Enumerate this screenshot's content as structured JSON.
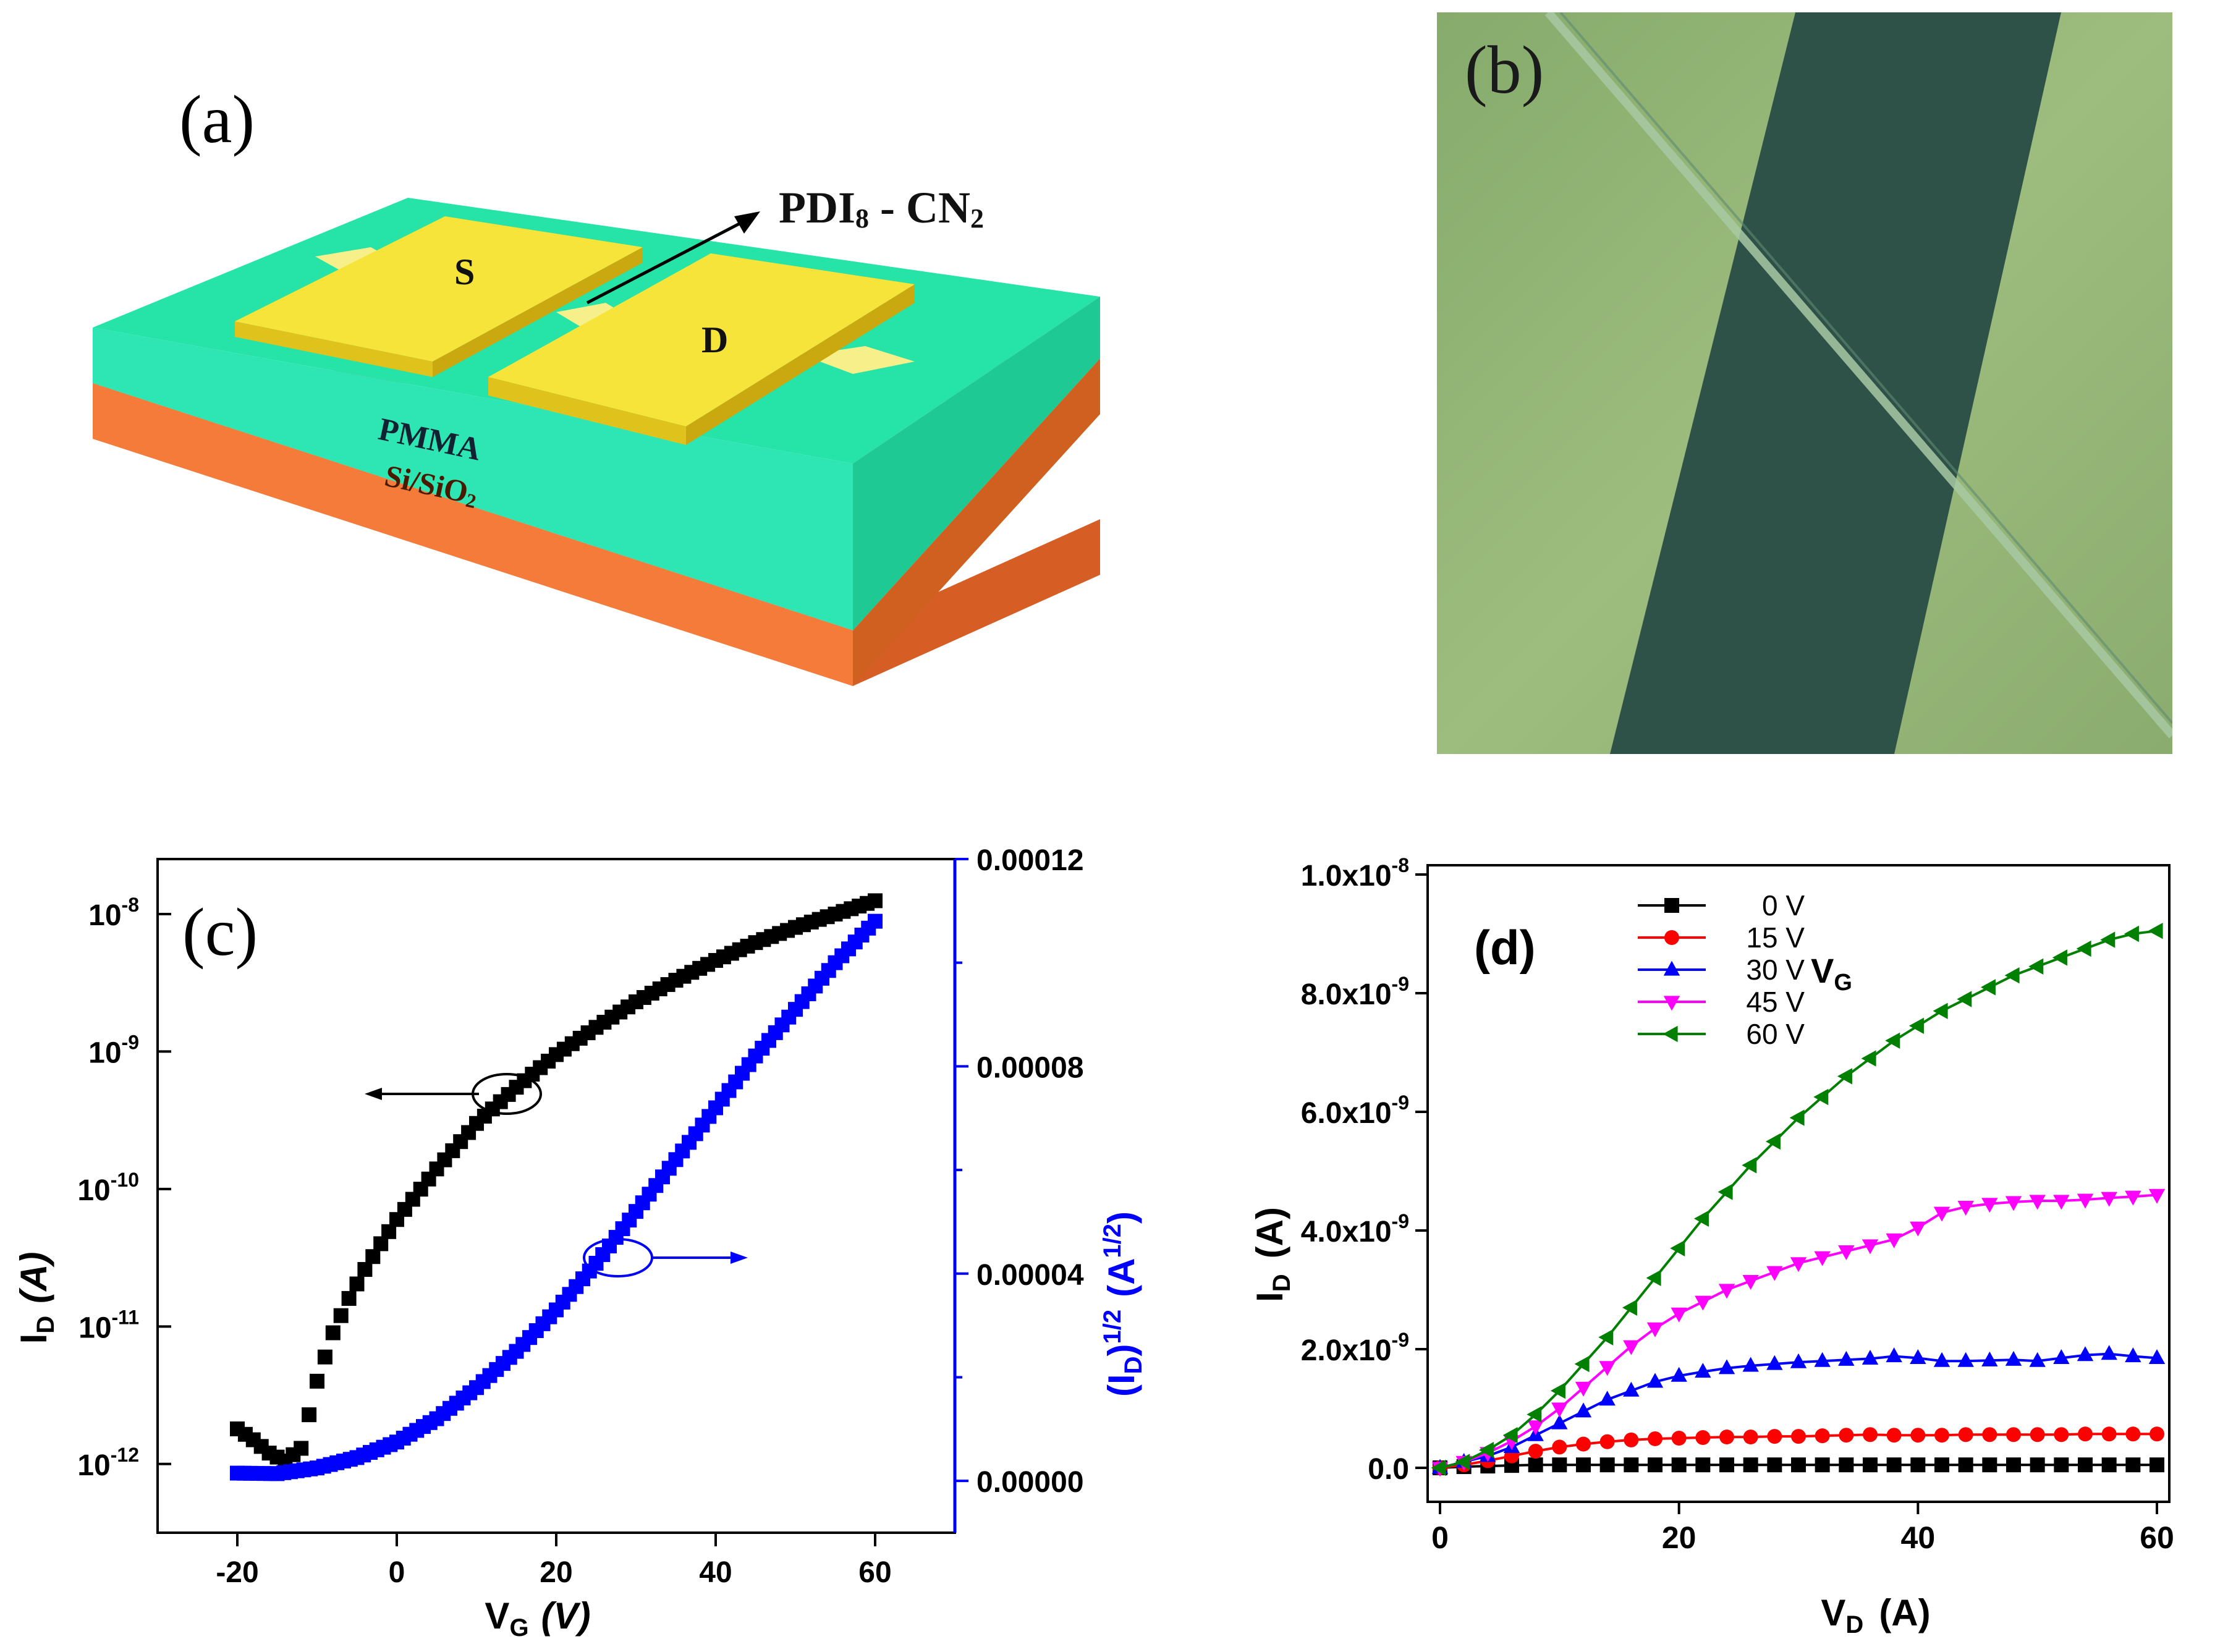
{
  "panel_a": {
    "label": "(a)",
    "material_label": "PDI",
    "material_sub1": "8",
    "material_mid": " - CN",
    "material_sub2": "2",
    "source_label": "S",
    "drain_label": "D",
    "dielectric_label": "PMMA",
    "substrate_label": "Si/SiO",
    "substrate_sub": "2"
  },
  "panel_b": {
    "label": "(b)"
  },
  "chart_data": [
    {
      "panel": "(c)",
      "type": "scatter",
      "title": "",
      "xlabel": "V",
      "xlabel_sub": "G",
      "xlabel_unit": "(V)",
      "ylabel_left": "I",
      "ylabel_left_sub": "D",
      "ylabel_left_unit": "(A)",
      "ylabel_right": "(I",
      "ylabel_right_sub": "D",
      "ylabel_right_mid": ")",
      "ylabel_right_sup": "1/2",
      "ylabel_right_unit": "(A",
      "ylabel_right_unit_sup": "1/2",
      "ylabel_right_unit_end": ")",
      "xlim": [
        -30,
        70
      ],
      "xticks": [
        "-20",
        "0",
        "20",
        "40",
        "60"
      ],
      "ylim_left_log10": [
        -12.5,
        -7.6
      ],
      "yticks_left": [
        {
          "base": "10",
          "exp": "-8"
        },
        {
          "base": "10",
          "exp": "-9"
        },
        {
          "base": "10",
          "exp": "-10"
        },
        {
          "base": "10",
          "exp": "-11"
        },
        {
          "base": "10",
          "exp": "-12"
        }
      ],
      "ylim_right": [
        -1e-05,
        0.00012
      ],
      "yticks_right": [
        "0.00012",
        "0.00008",
        "0.00004",
        "0.00000"
      ],
      "series": [
        {
          "name": "I_D (log)",
          "axis": "left",
          "color": "#000000",
          "marker": "square",
          "x": [
            -20,
            -18,
            -16,
            -14,
            -12,
            -10,
            -8,
            -6,
            -4,
            -2,
            0,
            5,
            10,
            15,
            20,
            25,
            30,
            35,
            40,
            45,
            50,
            55,
            60
          ],
          "y": [
            1.8e-12,
            1.5e-12,
            1.2e-12,
            1.05e-12,
            1.3e-12,
            4e-12,
            9e-12,
            1.6e-11,
            2.6e-11,
            4e-11,
            6e-11,
            1.4e-10,
            3e-10,
            5.5e-10,
            9.5e-10,
            1.5e-09,
            2.3e-09,
            3.3e-09,
            4.6e-09,
            6.2e-09,
            8e-09,
            1e-08,
            1.25e-08
          ]
        },
        {
          "name": "sqrt(I_D)",
          "axis": "right",
          "color": "#0000ff",
          "marker": "square",
          "x": [
            -20,
            -15,
            -10,
            -5,
            0,
            5,
            10,
            15,
            20,
            25,
            30,
            35,
            40,
            45,
            50,
            55,
            60
          ],
          "y": [
            1.5e-06,
            1.4e-06,
            2.5e-06,
            4.5e-06,
            7.5e-06,
            1.2e-05,
            1.8e-05,
            2.5e-05,
            3.3e-05,
            4.2e-05,
            5.2e-05,
            6.2e-05,
            7.2e-05,
            8.2e-05,
            9.1e-05,
            0.0001,
            0.000108
          ]
        }
      ],
      "annotations": [
        "arrow-left (I_D, left axis)",
        "arrow-right (sqrt I_D, right axis)"
      ]
    },
    {
      "panel": "(d)",
      "type": "line",
      "title": "",
      "xlabel": "V",
      "xlabel_sub": "D",
      "xlabel_unit": "(A)",
      "ylabel": "I",
      "ylabel_sub": "D",
      "ylabel_unit": "(A)",
      "xlim": [
        0,
        60
      ],
      "xticks": [
        "0",
        "20",
        "40",
        "60"
      ],
      "ylim": [
        -5e-10,
        1e-08
      ],
      "yticks": [
        {
          "value": 1e-08,
          "mant": "1.0x10",
          "exp": "-8"
        },
        {
          "value": 8e-09,
          "mant": "8.0x10",
          "exp": "-9"
        },
        {
          "value": 6e-09,
          "mant": "6.0x10",
          "exp": "-9"
        },
        {
          "value": 4e-09,
          "mant": "4.0x10",
          "exp": "-9"
        },
        {
          "value": 2e-09,
          "mant": "2.0x10",
          "exp": "-9"
        },
        {
          "value": 0,
          "mant": "0.0",
          "exp": ""
        }
      ],
      "legend_title": "V",
      "legend_title_sub": "G",
      "legend_position": "top-left",
      "x": [
        0,
        2,
        4,
        6,
        8,
        10,
        12,
        14,
        16,
        18,
        20,
        22,
        24,
        26,
        28,
        30,
        32,
        34,
        36,
        38,
        40,
        42,
        44,
        46,
        48,
        50,
        52,
        54,
        56,
        58,
        60
      ],
      "series": [
        {
          "name": "0 V",
          "color": "#000000",
          "marker": "square",
          "values": [
            0,
            2e-11,
            3e-11,
            4e-11,
            5e-11,
            5e-11,
            5e-11,
            5e-11,
            5e-11,
            5e-11,
            5e-11,
            5e-11,
            5e-11,
            5e-11,
            5e-11,
            5e-11,
            5e-11,
            5e-11,
            5e-11,
            5e-11,
            5e-11,
            5e-11,
            5e-11,
            5e-11,
            5e-11,
            5e-11,
            5e-11,
            5e-11,
            5e-11,
            5e-11,
            5e-11
          ]
        },
        {
          "name": "15 V",
          "color": "#ff0000",
          "marker": "circle",
          "values": [
            0,
            5e-11,
            1.2e-10,
            2e-10,
            2.8e-10,
            3.5e-10,
            4e-10,
            4.4e-10,
            4.7e-10,
            4.9e-10,
            5e-10,
            5.1e-10,
            5.2e-10,
            5.2e-10,
            5.3e-10,
            5.3e-10,
            5.4e-10,
            5.5e-10,
            5.6e-10,
            5.5e-10,
            5.5e-10,
            5.5e-10,
            5.6e-10,
            5.6e-10,
            5.6e-10,
            5.6e-10,
            5.6e-10,
            5.7e-10,
            5.7e-10,
            5.7e-10,
            5.7e-10
          ]
        },
        {
          "name": "30 V",
          "color": "#0000ff",
          "marker": "triangle-up",
          "values": [
            0,
            1e-10,
            2e-10,
            3.5e-10,
            5.5e-10,
            7.5e-10,
            9.5e-10,
            1.15e-09,
            1.3e-09,
            1.45e-09,
            1.55e-09,
            1.62e-09,
            1.68e-09,
            1.72e-09,
            1.75e-09,
            1.78e-09,
            1.8e-09,
            1.82e-09,
            1.84e-09,
            1.88e-09,
            1.85e-09,
            1.8e-09,
            1.8e-09,
            1.81e-09,
            1.82e-09,
            1.8e-09,
            1.85e-09,
            1.9e-09,
            1.92e-09,
            1.88e-09,
            1.85e-09
          ]
        },
        {
          "name": "45 V",
          "color": "#ff00ff",
          "marker": "triangle-down",
          "values": [
            0,
            1e-10,
            2.5e-10,
            4.5e-10,
            7e-10,
            1e-09,
            1.35e-09,
            1.7e-09,
            2.05e-09,
            2.35e-09,
            2.6e-09,
            2.8e-09,
            3e-09,
            3.15e-09,
            3.3e-09,
            3.45e-09,
            3.55e-09,
            3.65e-09,
            3.75e-09,
            3.85e-09,
            4.05e-09,
            4.3e-09,
            4.4e-09,
            4.45e-09,
            4.48e-09,
            4.5e-09,
            4.5e-09,
            4.52e-09,
            4.55e-09,
            4.57e-09,
            4.6e-09
          ]
        },
        {
          "name": "60 V",
          "color": "#008000",
          "marker": "triangle-left",
          "values": [
            0,
            1e-10,
            3e-10,
            5.5e-10,
            9e-10,
            1.3e-09,
            1.75e-09,
            2.2e-09,
            2.7e-09,
            3.2e-09,
            3.7e-09,
            4.2e-09,
            4.65e-09,
            5.1e-09,
            5.5e-09,
            5.9e-09,
            6.25e-09,
            6.6e-09,
            6.9e-09,
            7.2e-09,
            7.45e-09,
            7.7e-09,
            7.9e-09,
            8.1e-09,
            8.3e-09,
            8.45e-09,
            8.6e-09,
            8.75e-09,
            8.9e-09,
            9e-09,
            9.05e-09
          ]
        }
      ]
    }
  ],
  "panel_c": {
    "label": "(c)"
  },
  "panel_d": {
    "label": "(d)"
  }
}
